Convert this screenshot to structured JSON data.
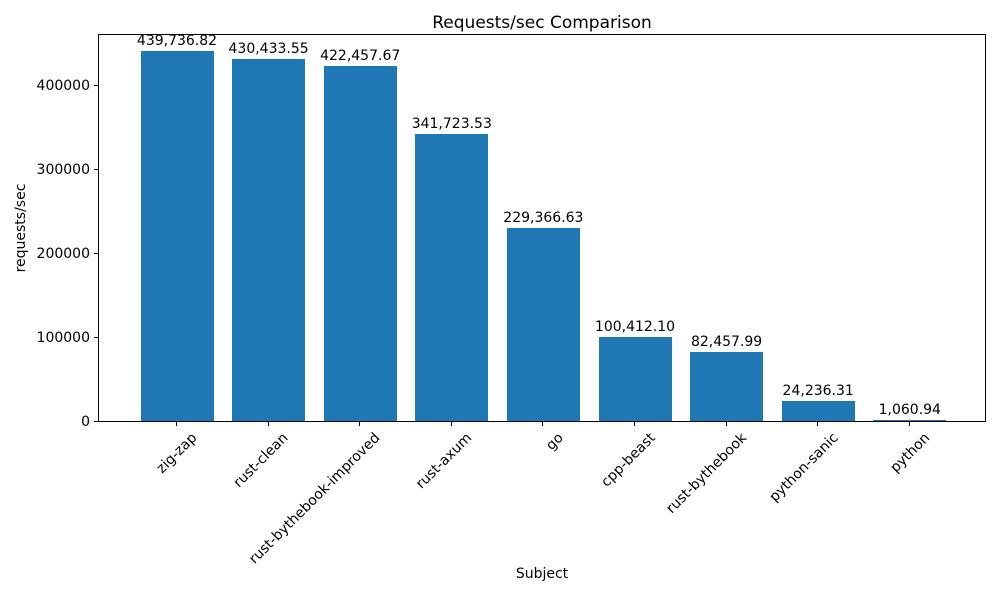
{
  "chart_data": {
    "type": "bar",
    "title": "Requests/sec Comparison",
    "xlabel": "Subject",
    "ylabel": "requests/sec",
    "categories": [
      "zig-zap",
      "rust-clean",
      "rust-bythebook-improved",
      "rust-axum",
      "go",
      "cpp-beast",
      "rust-bythebook",
      "python-sanic",
      "python"
    ],
    "values": [
      439736.82,
      430433.55,
      422457.67,
      341723.53,
      229366.63,
      100412.1,
      82457.99,
      24236.31,
      1060.94
    ],
    "value_labels": [
      "439,736.82",
      "430,433.55",
      "422,457.67",
      "341,723.53",
      "229,366.63",
      "100,412.10",
      "82,457.99",
      "24,236.31",
      "1,060.94"
    ],
    "yticks": [
      0,
      100000,
      200000,
      300000,
      400000
    ],
    "ytick_labels": [
      "0",
      "100000",
      "200000",
      "300000",
      "400000"
    ],
    "ylim": [
      0,
      461724
    ],
    "bar_color": "#1f77b4",
    "grid": false,
    "legend": null
  }
}
